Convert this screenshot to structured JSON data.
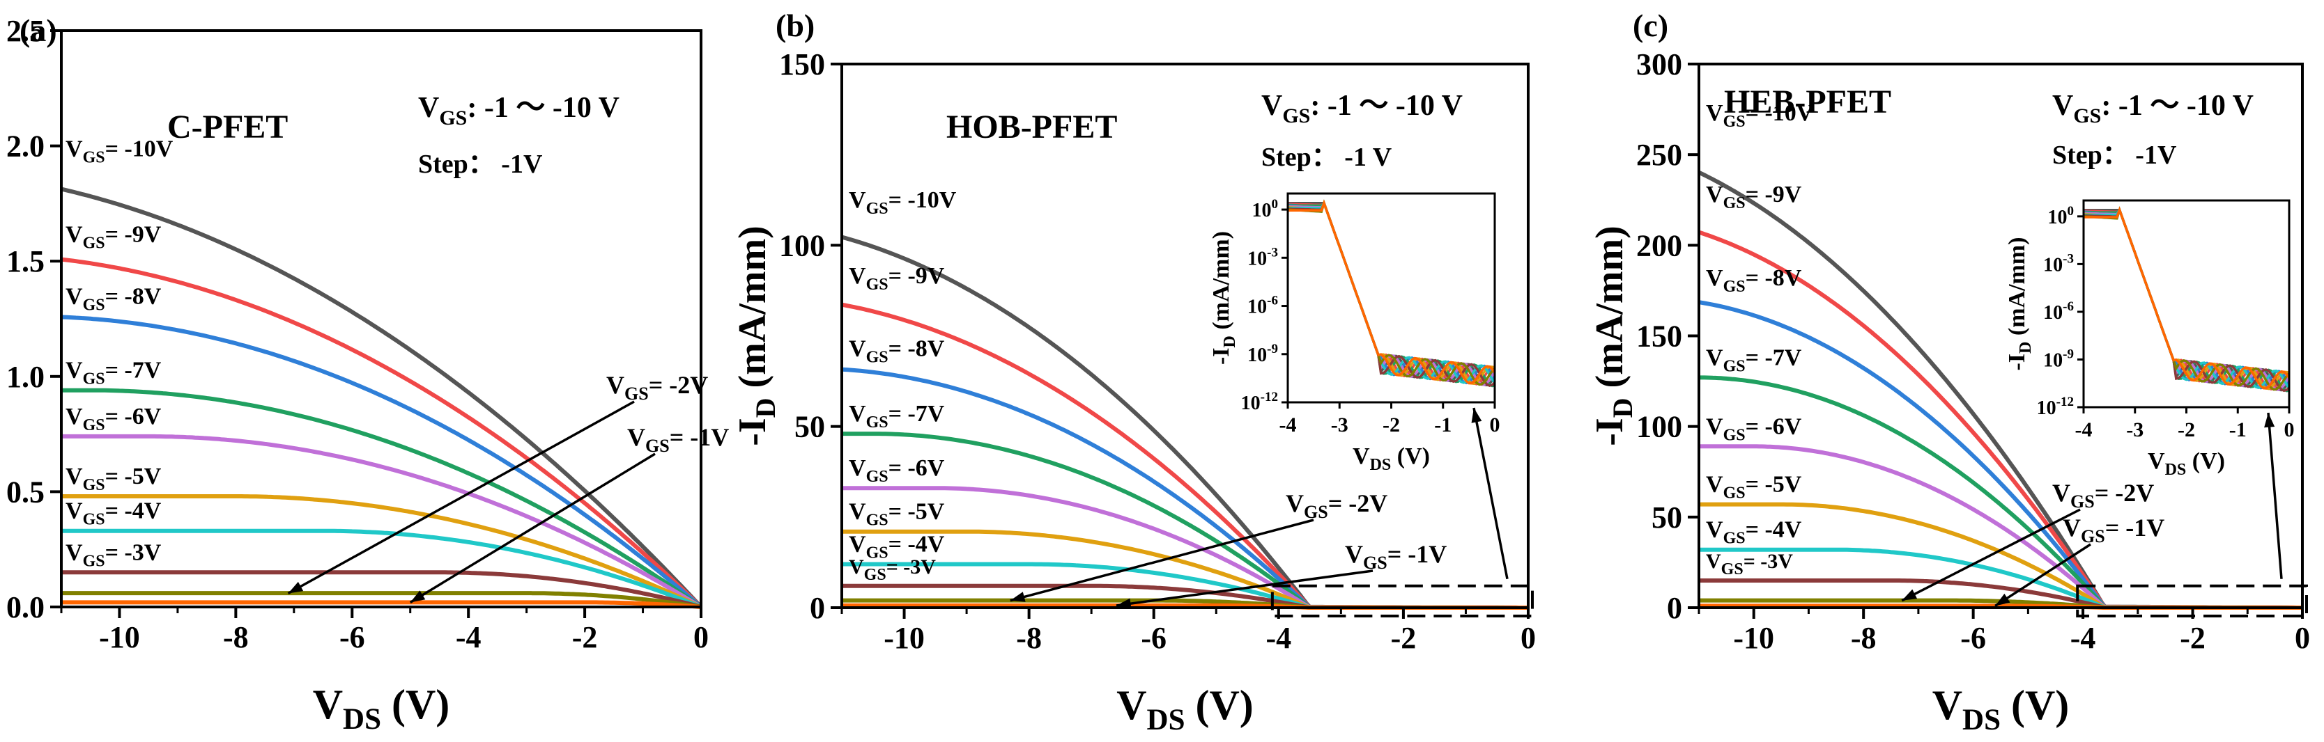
{
  "chart_data": [
    {
      "type": "line",
      "panel_label": "(a)",
      "device": "C-PFET",
      "vgs_range_label": "V",
      "vgs_range_sub": "GS",
      "vgs_range_value": ": -1 ～ -10 V",
      "step_label": "Step： -1V",
      "xlabel_main": "V",
      "xlabel_sub": "DS",
      "xlabel_unit": " (V)",
      "ylabel_main": "-I",
      "ylabel_sub": "D",
      "ylabel_unit": " (mA/mm)",
      "xlim": [
        -11,
        0
      ],
      "ylim": [
        0,
        2.5
      ],
      "x_ticks": [
        -10,
        -8,
        -6,
        -4,
        -2,
        0
      ],
      "x_tick_labels": [
        "-10",
        "-8",
        "-6",
        "-4",
        "-2",
        "0"
      ],
      "y_ticks": [
        0,
        0.5,
        1.0,
        1.5,
        2.0,
        2.5
      ],
      "y_tick_labels": [
        "0.0",
        "0.5",
        "1.0",
        "1.5",
        "2.0",
        "2.5"
      ],
      "vth": 0,
      "series": [
        {
          "name": "-10V",
          "label_prefix": "V",
          "label_sub": "GS",
          "label_value": "= -10V",
          "isat": 1.9,
          "vsat": -14,
          "color": "#555555"
        },
        {
          "name": "-9V",
          "label_prefix": "V",
          "label_sub": "GS",
          "label_value": "= -9V",
          "isat": 1.53,
          "vsat": -12.5,
          "color": "#f04848"
        },
        {
          "name": "-8V",
          "label_prefix": "V",
          "label_sub": "GS",
          "label_value": "= -8V",
          "isat": 1.26,
          "vsat": -11.5,
          "color": "#2f7fd8"
        },
        {
          "name": "-7V",
          "label_prefix": "V",
          "label_sub": "GS",
          "label_value": "= -7V",
          "isat": 0.94,
          "vsat": -10.5,
          "color": "#20a060"
        },
        {
          "name": "-6V",
          "label_prefix": "V",
          "label_sub": "GS",
          "label_value": "= -6V",
          "isat": 0.74,
          "vsat": -9.5,
          "color": "#c070d8"
        },
        {
          "name": "-5V",
          "label_prefix": "V",
          "label_sub": "GS",
          "label_value": "= -5V",
          "isat": 0.48,
          "vsat": -8,
          "color": "#e0a010"
        },
        {
          "name": "-4V",
          "label_prefix": "V",
          "label_sub": "GS",
          "label_value": "= -4V",
          "isat": 0.33,
          "vsat": -6.5,
          "color": "#20c8c8"
        },
        {
          "name": "-3V",
          "label_prefix": "V",
          "label_sub": "GS",
          "label_value": "= -3V",
          "isat": 0.15,
          "vsat": -4.5,
          "color": "#8b3a3a"
        },
        {
          "name": "-2V",
          "label_prefix": "V",
          "label_sub": "GS",
          "label_value": "= -2V",
          "isat": 0.06,
          "vsat": -3,
          "color": "#808000"
        },
        {
          "name": "-1V",
          "label_prefix": "V",
          "label_sub": "GS",
          "label_value": "= -1V",
          "isat": 0.02,
          "vsat": -2,
          "color": "#ff6600"
        }
      ]
    },
    {
      "type": "line",
      "panel_label": "(b)",
      "device": "HOB-PFET",
      "vgs_range_label": "V",
      "vgs_range_sub": "GS",
      "vgs_range_value": ": -1 ～ -10 V",
      "step_label": "Step： -1 V",
      "xlabel_main": "V",
      "xlabel_sub": "DS",
      "xlabel_unit": " (V)",
      "ylabel_main": "-I",
      "ylabel_sub": "D",
      "ylabel_unit": " (mA/mm)",
      "xlim": [
        -11,
        0
      ],
      "ylim": [
        0,
        150
      ],
      "x_ticks": [
        -10,
        -8,
        -6,
        -4,
        -2,
        0
      ],
      "x_tick_labels": [
        "-10",
        "-8",
        "-6",
        "-4",
        "-2",
        "0"
      ],
      "y_ticks": [
        0,
        50,
        100,
        150
      ],
      "y_tick_labels": [
        "0",
        "50",
        "100",
        "150"
      ],
      "vth": -3.5,
      "series": [
        {
          "name": "-10V",
          "label_prefix": "V",
          "label_sub": "GS",
          "label_value": "= -10V",
          "isat": 107,
          "vsat": -13,
          "color": "#555555"
        },
        {
          "name": "-9V",
          "label_prefix": "V",
          "label_sub": "GS",
          "label_value": "= -9V",
          "isat": 86,
          "vsat": -12.5,
          "color": "#f04848"
        },
        {
          "name": "-8V",
          "label_prefix": "V",
          "label_sub": "GS",
          "label_value": "= -8V",
          "isat": 66,
          "vsat": -11.5,
          "color": "#2f7fd8"
        },
        {
          "name": "-7V",
          "label_prefix": "V",
          "label_sub": "GS",
          "label_value": "= -7V",
          "isat": 48,
          "vsat": -10.5,
          "color": "#20a060"
        },
        {
          "name": "-6V",
          "label_prefix": "V",
          "label_sub": "GS",
          "label_value": "= -6V",
          "isat": 33,
          "vsat": -9.5,
          "color": "#c070d8"
        },
        {
          "name": "-5V",
          "label_prefix": "V",
          "label_sub": "GS",
          "label_value": "= -5V",
          "isat": 21,
          "vsat": -9,
          "color": "#e0a010"
        },
        {
          "name": "-4V",
          "label_prefix": "V",
          "label_sub": "GS",
          "label_value": "= -4V",
          "isat": 12,
          "vsat": -8,
          "color": "#20c8c8"
        },
        {
          "name": "-3V",
          "label_prefix": "V",
          "label_sub": "GS",
          "label_value": "= -3V",
          "isat": 6,
          "vsat": -7,
          "color": "#8b3a3a"
        },
        {
          "name": "-2V",
          "label_prefix": "V",
          "label_sub": "GS",
          "label_value": "= -2V",
          "isat": 2,
          "vsat": -6,
          "color": "#808000"
        },
        {
          "name": "-1V",
          "label_prefix": "V",
          "label_sub": "GS",
          "label_value": "= -1V",
          "isat": 0.6,
          "vsat": -5,
          "color": "#ff6600"
        }
      ],
      "inset": {
        "xlabel_main": "V",
        "xlabel_sub": "DS",
        "xlabel_unit": " (V)",
        "ylabel_main": "-I",
        "ylabel_sub": "D",
        "ylabel_unit": " (mA/mm)",
        "xlim": [
          -4,
          0
        ],
        "ylim_log": [
          -12,
          1
        ],
        "x_tick_labels": [
          "-4",
          "-3",
          "-2",
          "-1",
          "0"
        ],
        "y_tick_exp": [
          "0",
          "-3",
          "-6",
          "-9",
          "-12"
        ],
        "y_tick_base": "10"
      }
    },
    {
      "type": "line",
      "panel_label": "(c)",
      "device": "HEB-PFET",
      "vgs_range_label": "V",
      "vgs_range_sub": "GS",
      "vgs_range_value": ": -1 ～ -10 V",
      "step_label": "Step： -1V",
      "xlabel_main": "V",
      "xlabel_sub": "DS",
      "xlabel_unit": " (V)",
      "ylabel_main": "-I",
      "ylabel_sub": "D",
      "ylabel_unit": " (mA/mm)",
      "xlim": [
        -11,
        0
      ],
      "ylim": [
        0,
        300
      ],
      "x_ticks": [
        -10,
        -8,
        -6,
        -4,
        -2,
        0
      ],
      "x_tick_labels": [
        "-10",
        "-8",
        "-6",
        "-4",
        "-2",
        "0"
      ],
      "y_ticks": [
        0,
        50,
        100,
        150,
        200,
        250,
        300
      ],
      "y_tick_labels": [
        "0",
        "50",
        "100",
        "150",
        "200",
        "250",
        "300"
      ],
      "vth": -3.6,
      "series": [
        {
          "name": "-10V",
          "label_prefix": "V",
          "label_sub": "GS",
          "label_value": "= -10V",
          "isat": 262,
          "vsat": -14,
          "color": "#555555"
        },
        {
          "name": "-9V",
          "label_prefix": "V",
          "label_sub": "GS",
          "label_value": "= -9V",
          "isat": 217,
          "vsat": -13,
          "color": "#f04848"
        },
        {
          "name": "-8V",
          "label_prefix": "V",
          "label_sub": "GS",
          "label_value": "= -8V",
          "isat": 171,
          "vsat": -12,
          "color": "#2f7fd8"
        },
        {
          "name": "-7V",
          "label_prefix": "V",
          "label_sub": "GS",
          "label_value": "= -7V",
          "isat": 127,
          "vsat": -11,
          "color": "#20a060"
        },
        {
          "name": "-6V",
          "label_prefix": "V",
          "label_sub": "GS",
          "label_value": "= -6V",
          "isat": 89,
          "vsat": -10,
          "color": "#c070d8"
        },
        {
          "name": "-5V",
          "label_prefix": "V",
          "label_sub": "GS",
          "label_value": "= -5V",
          "isat": 57,
          "vsat": -9.5,
          "color": "#e0a010"
        },
        {
          "name": "-4V",
          "label_prefix": "V",
          "label_sub": "GS",
          "label_value": "= -4V",
          "isat": 32,
          "vsat": -8.5,
          "color": "#20c8c8"
        },
        {
          "name": "-3V",
          "label_prefix": "V",
          "label_sub": "GS",
          "label_value": "= -3V",
          "isat": 15,
          "vsat": -7.5,
          "color": "#8b3a3a"
        },
        {
          "name": "-2V",
          "label_prefix": "V",
          "label_sub": "GS",
          "label_value": "= -2V",
          "isat": 4,
          "vsat": -6.5,
          "color": "#808000"
        },
        {
          "name": "-1V",
          "label_prefix": "V",
          "label_sub": "GS",
          "label_value": "= -1V",
          "isat": 1,
          "vsat": -5.5,
          "color": "#ff6600"
        }
      ],
      "inset": {
        "xlabel_main": "V",
        "xlabel_sub": "DS",
        "xlabel_unit": " (V)",
        "ylabel_main": "-I",
        "ylabel_sub": "D",
        "ylabel_unit": " (mA/mm)",
        "xlim": [
          -4,
          0
        ],
        "ylim_log": [
          -12,
          1
        ],
        "x_tick_labels": [
          "-4",
          "-3",
          "-2",
          "-1",
          "0"
        ],
        "y_tick_exp": [
          "0",
          "-3",
          "-6",
          "-9",
          "-12"
        ],
        "y_tick_base": "10"
      }
    }
  ]
}
